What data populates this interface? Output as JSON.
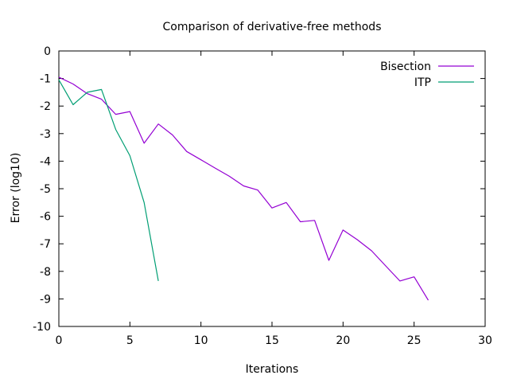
{
  "chart_data": {
    "type": "line",
    "title": "Comparison of derivative-free methods",
    "xlabel": "Iterations",
    "ylabel": "Error (log10)",
    "xlim": [
      0,
      30
    ],
    "ylim": [
      -10,
      0
    ],
    "xticks": [
      "0",
      "5",
      "10",
      "15",
      "20",
      "25",
      "30"
    ],
    "yticks": [
      "0",
      "-1",
      "-2",
      "-3",
      "-4",
      "-5",
      "-6",
      "-7",
      "-8",
      "-9",
      "-10"
    ],
    "grid": false,
    "legend_position": "top-right",
    "series": [
      {
        "name": "Bisection",
        "color": "#9400d3",
        "x": [
          0,
          1,
          2,
          3,
          4,
          5,
          6,
          7,
          8,
          9,
          10,
          11,
          12,
          13,
          14,
          15,
          16,
          17,
          18,
          19,
          20,
          21,
          22,
          23,
          24,
          25,
          26
        ],
        "y": [
          -0.95,
          -1.2,
          -1.55,
          -1.75,
          -2.3,
          -2.2,
          -3.35,
          -2.65,
          -3.05,
          -3.65,
          -3.95,
          -4.25,
          -4.55,
          -4.9,
          -5.05,
          -5.7,
          -5.5,
          -6.2,
          -6.15,
          -7.6,
          -6.5,
          -6.85,
          -7.25,
          -7.8,
          -8.35,
          -8.2,
          -9.05
        ]
      },
      {
        "name": "ITP",
        "color": "#009e73",
        "x": [
          0,
          1,
          2,
          3,
          4,
          5,
          6,
          7
        ],
        "y": [
          -1.05,
          -1.95,
          -1.5,
          -1.4,
          -2.85,
          -3.8,
          -5.5,
          -8.35
        ]
      }
    ]
  }
}
